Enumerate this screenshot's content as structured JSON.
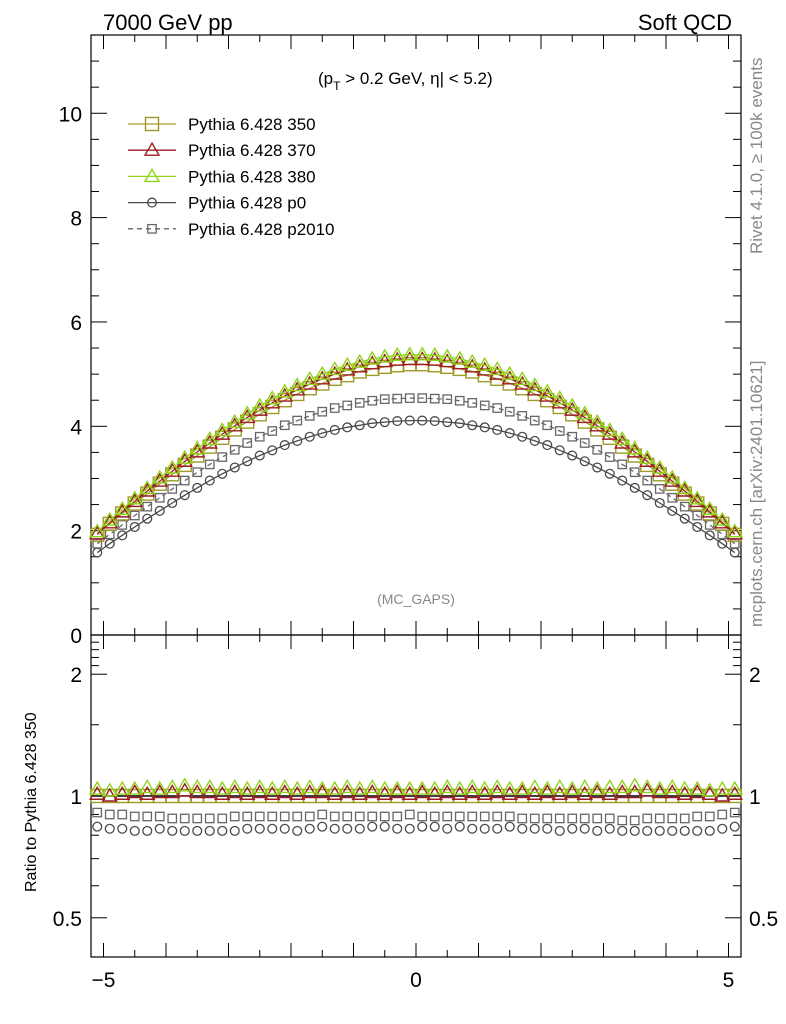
{
  "header": {
    "left_title": "7000 GeV pp",
    "right_title": "Soft QCD"
  },
  "side_labels": {
    "rivet": "Rivet 4.1.0, ≥ 100k events",
    "mcplots": "mcplots.cern.ch [arXiv:2401.10621]"
  },
  "analysis_tag": "(MC_GAPS)",
  "cut_label": {
    "open": "(p",
    "sub": "T",
    "mid": " > 0.2 GeV, ",
    "eta": "η",
    "close": "| < 5.2)"
  },
  "colors": {
    "p350": "#a09a2a",
    "p370": "#9b1c24",
    "p380": "#8fd41a",
    "p0": "#4a4a4a",
    "p2010": "#666666"
  },
  "chart_data": [
    {
      "type": "line",
      "panel": "main",
      "title": "",
      "xlabel": "",
      "ylabel": "",
      "xlim": [
        -5.2,
        5.2
      ],
      "ylim": [
        0,
        11.5
      ],
      "yticks": [
        0,
        2,
        4,
        6,
        8,
        10
      ],
      "ytick_labels": [
        "0",
        "2",
        "4",
        "6",
        "8",
        "10"
      ],
      "legend_position": "top-left",
      "x": [
        -5.1,
        -4.9,
        -4.7,
        -4.5,
        -4.3,
        -4.1,
        -3.9,
        -3.7,
        -3.5,
        -3.3,
        -3.1,
        -2.9,
        -2.7,
        -2.5,
        -2.3,
        -2.1,
        -1.9,
        -1.7,
        -1.5,
        -1.3,
        -1.1,
        -0.9,
        -0.7,
        -0.5,
        -0.3,
        -0.1,
        0.1,
        0.3,
        0.5,
        0.7,
        0.9,
        1.1,
        1.3,
        1.5,
        1.7,
        1.9,
        2.1,
        2.3,
        2.5,
        2.7,
        2.9,
        3.1,
        3.3,
        3.5,
        3.7,
        3.9,
        4.1,
        4.3,
        4.5,
        4.7,
        4.9,
        5.1
      ],
      "series": [
        {
          "name": "Pythia 6.428 350",
          "key": "p350",
          "marker": "square-open",
          "line": "solid",
          "values": [
            1.92,
            2.13,
            2.33,
            2.52,
            2.71,
            2.9,
            3.08,
            3.26,
            3.44,
            3.61,
            3.78,
            3.94,
            4.09,
            4.23,
            4.37,
            4.5,
            4.62,
            4.73,
            4.82,
            4.91,
            4.98,
            5.05,
            5.1,
            5.14,
            5.17,
            5.19,
            5.19,
            5.17,
            5.14,
            5.1,
            5.05,
            4.98,
            4.91,
            4.82,
            4.73,
            4.62,
            4.5,
            4.37,
            4.23,
            4.09,
            3.94,
            3.78,
            3.61,
            3.44,
            3.26,
            3.08,
            2.9,
            2.71,
            2.52,
            2.33,
            2.13,
            1.92
          ]
        },
        {
          "name": "Pythia 6.428 370",
          "key": "p370",
          "marker": "triangle-open",
          "line": "solid",
          "values": [
            1.94,
            2.15,
            2.36,
            2.56,
            2.76,
            2.95,
            3.14,
            3.33,
            3.51,
            3.68,
            3.85,
            4.01,
            4.17,
            4.31,
            4.45,
            4.58,
            4.7,
            4.81,
            4.91,
            5.0,
            5.08,
            5.14,
            5.2,
            5.24,
            5.27,
            5.28,
            5.28,
            5.27,
            5.24,
            5.2,
            5.14,
            5.08,
            5.0,
            4.91,
            4.81,
            4.7,
            4.58,
            4.45,
            4.31,
            4.17,
            4.01,
            3.85,
            3.68,
            3.51,
            3.33,
            3.14,
            2.95,
            2.76,
            2.56,
            2.36,
            2.15,
            1.94
          ]
        },
        {
          "name": "Pythia 6.428 380",
          "key": "p380",
          "marker": "triangle-open",
          "line": "solid",
          "values": [
            1.98,
            2.2,
            2.41,
            2.61,
            2.81,
            3.01,
            3.2,
            3.39,
            3.57,
            3.75,
            3.92,
            4.08,
            4.24,
            4.39,
            4.53,
            4.66,
            4.78,
            4.9,
            5.0,
            5.09,
            5.17,
            5.23,
            5.29,
            5.33,
            5.36,
            5.37,
            5.37,
            5.36,
            5.33,
            5.29,
            5.23,
            5.17,
            5.09,
            5.0,
            4.9,
            4.78,
            4.66,
            4.53,
            4.39,
            4.24,
            4.08,
            3.92,
            3.75,
            3.57,
            3.39,
            3.2,
            3.01,
            2.81,
            2.61,
            2.41,
            2.2,
            1.98
          ]
        },
        {
          "name": "Pythia 6.428 p0",
          "key": "p0",
          "marker": "circle-open",
          "line": "solid",
          "values": [
            1.58,
            1.75,
            1.91,
            2.07,
            2.23,
            2.38,
            2.53,
            2.68,
            2.82,
            2.96,
            3.09,
            3.21,
            3.33,
            3.44,
            3.54,
            3.64,
            3.72,
            3.8,
            3.87,
            3.93,
            3.98,
            4.02,
            4.06,
            4.08,
            4.1,
            4.11,
            4.11,
            4.1,
            4.08,
            4.06,
            4.02,
            3.98,
            3.93,
            3.87,
            3.8,
            3.72,
            3.64,
            3.54,
            3.44,
            3.33,
            3.21,
            3.09,
            2.96,
            2.82,
            2.68,
            2.53,
            2.38,
            2.23,
            2.07,
            1.91,
            1.75,
            1.58
          ]
        },
        {
          "name": "Pythia 6.428 p2010",
          "key": "p2010",
          "marker": "square-open-small",
          "line": "dashed",
          "values": [
            1.75,
            1.93,
            2.11,
            2.29,
            2.46,
            2.63,
            2.8,
            2.96,
            3.12,
            3.27,
            3.41,
            3.55,
            3.68,
            3.8,
            3.91,
            4.02,
            4.11,
            4.2,
            4.28,
            4.35,
            4.4,
            4.45,
            4.49,
            4.52,
            4.53,
            4.54,
            4.54,
            4.53,
            4.52,
            4.49,
            4.45,
            4.4,
            4.35,
            4.28,
            4.2,
            4.11,
            4.02,
            3.91,
            3.8,
            3.68,
            3.55,
            3.41,
            3.27,
            3.12,
            2.96,
            2.8,
            2.63,
            2.46,
            2.29,
            2.11,
            1.93,
            1.75
          ]
        }
      ]
    },
    {
      "type": "line",
      "panel": "ratio",
      "ylabel": "Ratio to Pythia 6.428 350",
      "yscale": "log",
      "xlim": [
        -5.2,
        5.2
      ],
      "ylim": [
        0.4,
        2.5
      ],
      "yticks": [
        0.5,
        1,
        2
      ],
      "ytick_labels": [
        "0.5",
        "1",
        "2"
      ],
      "xticks": [
        -5,
        0,
        5
      ],
      "xtick_labels": [
        "−5",
        "0",
        "5"
      ],
      "x": [
        -5.1,
        -4.9,
        -4.7,
        -4.5,
        -4.3,
        -4.1,
        -3.9,
        -3.7,
        -3.5,
        -3.3,
        -3.1,
        -2.9,
        -2.7,
        -2.5,
        -2.3,
        -2.1,
        -1.9,
        -1.7,
        -1.5,
        -1.3,
        -1.1,
        -0.9,
        -0.7,
        -0.5,
        -0.3,
        -0.1,
        0.1,
        0.3,
        0.5,
        0.7,
        0.9,
        1.1,
        1.3,
        1.5,
        1.7,
        1.9,
        2.1,
        2.3,
        2.5,
        2.7,
        2.9,
        3.1,
        3.3,
        3.5,
        3.7,
        3.9,
        4.1,
        4.3,
        4.5,
        4.7,
        4.9,
        5.1
      ],
      "series": [
        {
          "name": "Pythia 6.428 350",
          "key": "p350",
          "marker": "square-open",
          "values": [
            1,
            1,
            1,
            1,
            1,
            1,
            1,
            1,
            1,
            1,
            1,
            1,
            1,
            1,
            1,
            1,
            1,
            1,
            1,
            1,
            1,
            1,
            1,
            1,
            1,
            1,
            1,
            1,
            1,
            1,
            1,
            1,
            1,
            1,
            1,
            1,
            1,
            1,
            1,
            1,
            1,
            1,
            1,
            1,
            1,
            1,
            1,
            1,
            1,
            1,
            1,
            1
          ]
        },
        {
          "name": "Pythia 6.428 370",
          "key": "p370",
          "marker": "triangle-open",
          "values": [
            1.01,
            1.0,
            1.01,
            1.02,
            1.01,
            1.02,
            1.02,
            1.03,
            1.02,
            1.02,
            1.01,
            1.02,
            1.01,
            1.02,
            1.01,
            1.02,
            1.01,
            1.02,
            1.02,
            1.01,
            1.02,
            1.01,
            1.02,
            1.01,
            1.02,
            1.01,
            1.02,
            1.01,
            1.02,
            1.01,
            1.02,
            1.01,
            1.02,
            1.01,
            1.02,
            1.01,
            1.02,
            1.01,
            1.02,
            1.01,
            1.02,
            1.01,
            1.02,
            1.02,
            1.03,
            1.02,
            1.02,
            1.01,
            1.02,
            1.01,
            1.0,
            1.01
          ]
        },
        {
          "name": "Pythia 6.428 380",
          "key": "p380",
          "marker": "triangle-open",
          "values": [
            1.04,
            1.03,
            1.04,
            1.04,
            1.05,
            1.04,
            1.05,
            1.06,
            1.05,
            1.05,
            1.04,
            1.05,
            1.04,
            1.05,
            1.04,
            1.05,
            1.04,
            1.05,
            1.04,
            1.04,
            1.05,
            1.04,
            1.05,
            1.04,
            1.04,
            1.04,
            1.04,
            1.04,
            1.05,
            1.04,
            1.05,
            1.04,
            1.05,
            1.04,
            1.04,
            1.05,
            1.04,
            1.05,
            1.04,
            1.05,
            1.04,
            1.05,
            1.05,
            1.06,
            1.05,
            1.04,
            1.05,
            1.04,
            1.04,
            1.03,
            1.04,
            1.04
          ]
        },
        {
          "name": "Pythia 6.428 p0",
          "key": "p0",
          "marker": "circle-open",
          "values": [
            0.84,
            0.83,
            0.83,
            0.82,
            0.82,
            0.83,
            0.82,
            0.82,
            0.82,
            0.82,
            0.82,
            0.82,
            0.83,
            0.83,
            0.83,
            0.83,
            0.82,
            0.83,
            0.84,
            0.83,
            0.83,
            0.83,
            0.84,
            0.84,
            0.83,
            0.83,
            0.84,
            0.84,
            0.83,
            0.84,
            0.83,
            0.83,
            0.83,
            0.84,
            0.83,
            0.83,
            0.83,
            0.82,
            0.83,
            0.83,
            0.82,
            0.83,
            0.82,
            0.82,
            0.82,
            0.82,
            0.82,
            0.82,
            0.82,
            0.82,
            0.83,
            0.84
          ]
        },
        {
          "name": "Pythia 6.428 p2010",
          "key": "p2010",
          "marker": "square-open-small",
          "values": [
            0.91,
            0.9,
            0.9,
            0.89,
            0.89,
            0.89,
            0.88,
            0.88,
            0.88,
            0.88,
            0.88,
            0.89,
            0.89,
            0.89,
            0.89,
            0.89,
            0.89,
            0.89,
            0.9,
            0.89,
            0.89,
            0.89,
            0.89,
            0.89,
            0.89,
            0.9,
            0.89,
            0.89,
            0.89,
            0.89,
            0.89,
            0.89,
            0.89,
            0.89,
            0.88,
            0.88,
            0.88,
            0.88,
            0.88,
            0.88,
            0.88,
            0.88,
            0.87,
            0.87,
            0.88,
            0.88,
            0.88,
            0.88,
            0.89,
            0.89,
            0.9,
            0.91
          ]
        }
      ]
    }
  ]
}
